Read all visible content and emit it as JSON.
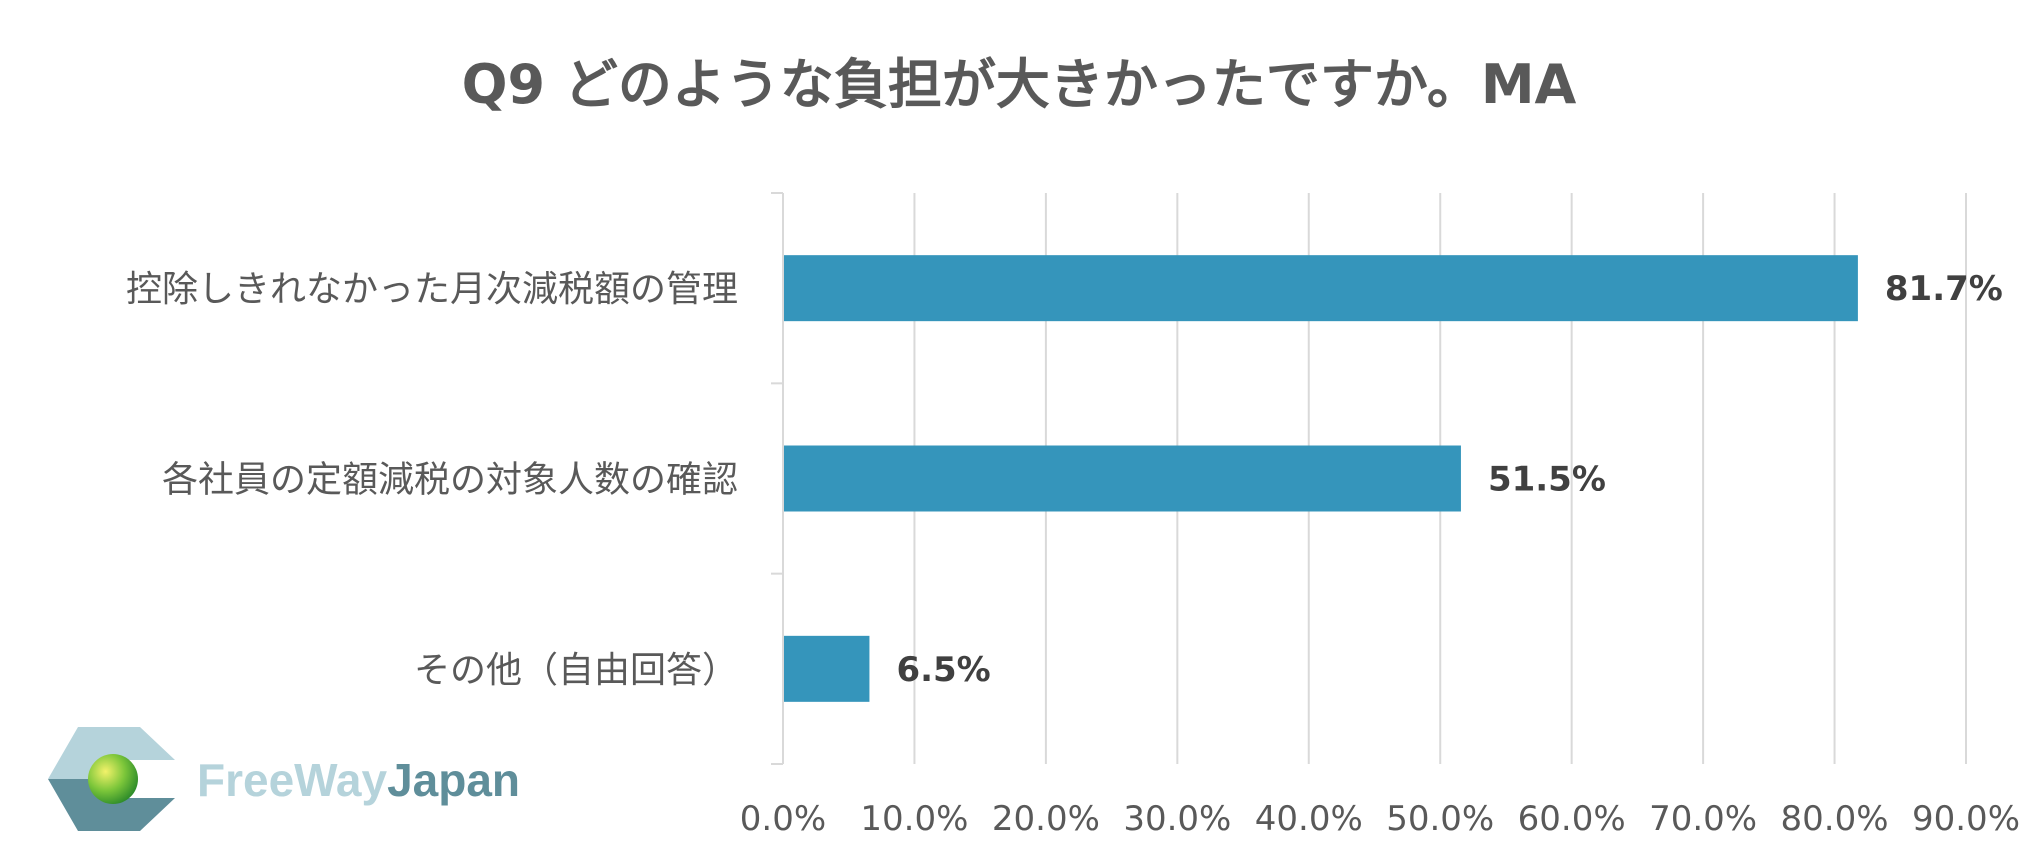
{
  "chart_data": {
    "type": "bar",
    "orientation": "horizontal",
    "title": "Q9 どのような負担が大きかったですか。MA",
    "categories": [
      "控除しきれなかった月次減税額の管理",
      "各社員の定額減税の対象人数の確認",
      "その他（自由回答）"
    ],
    "values": [
      81.7,
      51.5,
      6.5
    ],
    "data_labels": [
      "81.7%",
      "51.5%",
      "6.5%"
    ],
    "xlim": [
      0,
      90
    ],
    "x_ticks": [
      0,
      10,
      20,
      30,
      40,
      50,
      60,
      70,
      80,
      90
    ],
    "x_tick_labels": [
      "0.0%",
      "10.0%",
      "20.0%",
      "30.0%",
      "40.0%",
      "50.0%",
      "60.0%",
      "70.0%",
      "80.0%",
      "90.0%"
    ],
    "grid": true,
    "legend": "none",
    "bar_color": "#3595bb",
    "grid_color": "#d9d9d9"
  },
  "logo": {
    "text_free": "Free",
    "text_way": "Way",
    "text_japan": "Japan",
    "colors": {
      "light": "#b5d3db",
      "dark": "#5f8e9a",
      "sphere": "#44a832"
    }
  }
}
